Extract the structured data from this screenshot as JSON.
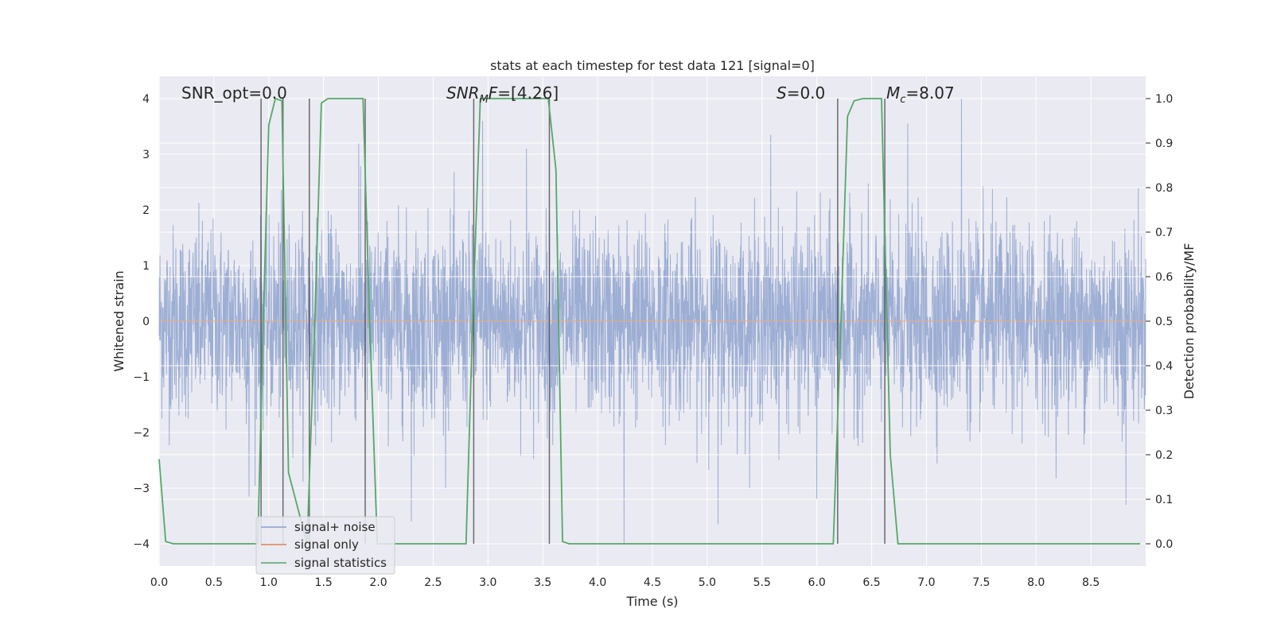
{
  "chart_data": {
    "type": "line",
    "title": "stats at each timestep for test data 121 [signal=0]",
    "xlabel": "Time (s)",
    "ylabel": "Whitened strain",
    "y2label": "Detection probability/MF",
    "xlim": [
      0.0,
      9.0
    ],
    "ylim": [
      -4.4,
      4.4
    ],
    "y2lim": [
      -0.05,
      1.05
    ],
    "xticks": [
      "0.0",
      "0.5",
      "1.0",
      "1.5",
      "2.0",
      "2.5",
      "3.0",
      "3.5",
      "4.0",
      "4.5",
      "5.0",
      "5.5",
      "6.0",
      "6.5",
      "7.0",
      "7.5",
      "8.0",
      "8.5"
    ],
    "yticks": [
      "4",
      "3",
      "2",
      "1",
      "0",
      "−1",
      "−2",
      "−3",
      "−4"
    ],
    "y2ticks": [
      "1.0",
      "0.9",
      "0.8",
      "0.7",
      "0.6",
      "0.5",
      "0.4",
      "0.3",
      "0.2",
      "0.1",
      "0.0"
    ],
    "grid": true,
    "legend_position": "lower-left",
    "annotations": {
      "snr_opt": "SNR_opt=0.0",
      "snr_mf_main": "SNR",
      "snr_mf_sub": "M",
      "snr_mf_rest": "F=[4.26]",
      "s_italic": "S",
      "s_rest": "=0.0",
      "mc_main": "M",
      "mc_sub": "c",
      "mc_rest": "=8.07"
    },
    "series": [
      {
        "name": "signal+ noise",
        "color": "#8a9fcc",
        "axis": "left",
        "noise_sigma": 0.85,
        "spikes": [
          [
            1.82,
            3.2
          ],
          [
            2.95,
            3.6
          ],
          [
            4.24,
            -4.0
          ],
          [
            5.58,
            3.35
          ],
          [
            6.83,
            3.55
          ],
          [
            7.32,
            4.0
          ],
          [
            8.82,
            -3.3
          ],
          [
            0.82,
            -3.15
          ],
          [
            5.1,
            -3.65
          ],
          [
            2.3,
            -3.6
          ],
          [
            6.0,
            -3.2
          ],
          [
            3.35,
            3.1
          ]
        ]
      },
      {
        "name": "signal only",
        "color": "#dd8452",
        "axis": "left",
        "x": [
          0.0,
          9.0
        ],
        "y": [
          0.0,
          0.0
        ]
      },
      {
        "name": "signal statistics",
        "color": "#55a868",
        "axis": "right",
        "x": [
          0.0,
          0.06,
          0.13,
          0.9,
          0.95,
          1.0,
          1.06,
          1.12,
          1.18,
          1.35,
          1.42,
          1.48,
          1.54,
          1.86,
          1.92,
          1.99,
          2.06,
          2.8,
          2.86,
          2.93,
          2.99,
          3.55,
          3.62,
          3.68,
          3.74,
          6.15,
          6.22,
          6.28,
          6.34,
          6.42,
          6.59,
          6.67,
          6.74,
          6.82,
          8.95
        ],
        "y": [
          0.19,
          0.005,
          0.0,
          0.0,
          0.5,
          0.94,
          1.0,
          0.995,
          0.16,
          0.0,
          0.5,
          0.99,
          1.0,
          1.0,
          0.5,
          0.0,
          0.0,
          0.0,
          0.5,
          1.0,
          1.0,
          1.0,
          0.84,
          0.005,
          0.0,
          0.0,
          0.5,
          0.96,
          0.995,
          1.0,
          1.0,
          0.2,
          0.0,
          0.0,
          0.0
        ]
      }
    ],
    "vlines": [
      0.93,
      1.13,
      1.37,
      1.88,
      2.87,
      3.56,
      6.19,
      6.62
    ]
  }
}
